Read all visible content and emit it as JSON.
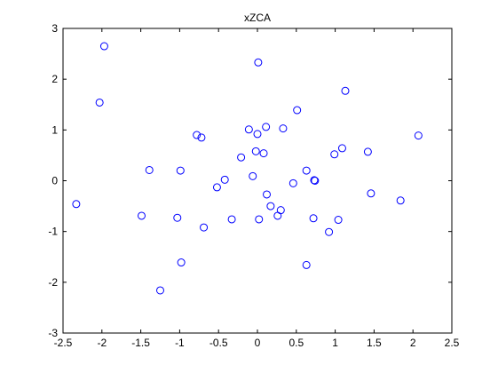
{
  "chart_data": {
    "type": "scatter",
    "title": "xZCA",
    "xlabel": "",
    "ylabel": "",
    "xlim": [
      -2.5,
      2.5
    ],
    "ylim": [
      -3,
      3
    ],
    "x_ticks": [
      -2.5,
      -2,
      -1.5,
      -1,
      -0.5,
      0,
      0.5,
      1,
      1.5,
      2,
      2.5
    ],
    "y_ticks": [
      -3,
      -2,
      -1,
      0,
      1,
      2,
      3
    ],
    "x_tick_labels": [
      "-2.5",
      "-2",
      "-1.5",
      "-1",
      "-0.5",
      "0",
      "0.5",
      "1",
      "1.5",
      "2",
      "2.5"
    ],
    "y_tick_labels": [
      "-3",
      "-2",
      "-1",
      "0",
      "1",
      "2",
      "3"
    ],
    "grid": false,
    "marker": "circle-open",
    "marker_color": "#0000ff",
    "points": [
      {
        "x": -1.97,
        "y": 2.65
      },
      {
        "x": -2.03,
        "y": 1.54
      },
      {
        "x": 0.01,
        "y": 2.33
      },
      {
        "x": 1.13,
        "y": 1.77
      },
      {
        "x": 0.51,
        "y": 1.39
      },
      {
        "x": 0.11,
        "y": 1.06
      },
      {
        "x": 0.33,
        "y": 1.03
      },
      {
        "x": -0.11,
        "y": 1.01
      },
      {
        "x": 0.0,
        "y": 0.92
      },
      {
        "x": -0.78,
        "y": 0.9
      },
      {
        "x": -0.72,
        "y": 0.85
      },
      {
        "x": 2.07,
        "y": 0.89
      },
      {
        "x": 1.09,
        "y": 0.64
      },
      {
        "x": 0.99,
        "y": 0.52
      },
      {
        "x": 1.42,
        "y": 0.57
      },
      {
        "x": -0.02,
        "y": 0.58
      },
      {
        "x": 0.08,
        "y": 0.54
      },
      {
        "x": -0.21,
        "y": 0.46
      },
      {
        "x": -1.39,
        "y": 0.21
      },
      {
        "x": -0.99,
        "y": 0.2
      },
      {
        "x": 0.63,
        "y": 0.2
      },
      {
        "x": -0.06,
        "y": 0.09
      },
      {
        "x": -0.42,
        "y": 0.02
      },
      {
        "x": 0.73,
        "y": 0.01
      },
      {
        "x": 0.74,
        "y": 0.0
      },
      {
        "x": 0.46,
        "y": -0.05
      },
      {
        "x": -0.52,
        "y": -0.13
      },
      {
        "x": 1.46,
        "y": -0.25
      },
      {
        "x": 0.12,
        "y": -0.27
      },
      {
        "x": 1.84,
        "y": -0.39
      },
      {
        "x": -2.33,
        "y": -0.46
      },
      {
        "x": 0.17,
        "y": -0.5
      },
      {
        "x": 0.3,
        "y": -0.58
      },
      {
        "x": -1.49,
        "y": -0.69
      },
      {
        "x": 0.26,
        "y": -0.69
      },
      {
        "x": -1.03,
        "y": -0.73
      },
      {
        "x": 0.72,
        "y": -0.74
      },
      {
        "x": -0.33,
        "y": -0.76
      },
      {
        "x": 0.02,
        "y": -0.76
      },
      {
        "x": 1.04,
        "y": -0.77
      },
      {
        "x": -0.69,
        "y": -0.92
      },
      {
        "x": 0.92,
        "y": -1.01
      },
      {
        "x": -0.98,
        "y": -1.61
      },
      {
        "x": 0.63,
        "y": -1.66
      },
      {
        "x": -1.25,
        "y": -2.16
      }
    ]
  }
}
